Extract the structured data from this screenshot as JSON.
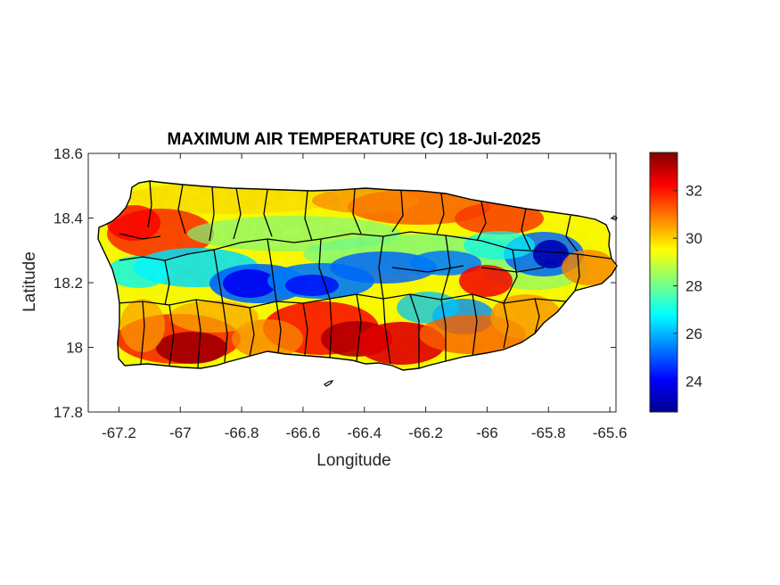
{
  "chart_data": {
    "type": "heatmap",
    "title": "MAXIMUM AIR TEMPERATURE (C) 18-Jul-2025",
    "xlabel": "Longitude",
    "ylabel": "Latitude",
    "xlim": [
      -67.3,
      -65.58
    ],
    "ylim": [
      17.8,
      18.6
    ],
    "xticks": [
      -67.2,
      -67,
      -66.8,
      -66.6,
      -66.4,
      -66.2,
      -66,
      -65.8,
      -65.6
    ],
    "xtick_labels": [
      "-67.2",
      "-67",
      "-66.8",
      "-66.6",
      "-66.4",
      "-66.2",
      "-66",
      "-65.8",
      "-65.6"
    ],
    "yticks": [
      17.8,
      18,
      18.2,
      18.4,
      18.6
    ],
    "ytick_labels": [
      "17.8",
      "18",
      "18.2",
      "18.4",
      "18.6"
    ],
    "colorbar": {
      "colormap": "jet",
      "range": [
        22.7,
        33.6
      ],
      "ticks": [
        24,
        26,
        28,
        30,
        32
      ],
      "tick_labels": [
        "24",
        "26",
        "28",
        "30",
        "32"
      ]
    },
    "region": "Puerto Rico",
    "spatial_pattern": {
      "description_only": false,
      "cool_band": {
        "lat_center": 18.21,
        "min_value": 23.0
      },
      "warm_areas": [
        {
          "lon": -66.95,
          "lat": 18.02,
          "value": 33.4
        },
        {
          "lon": -66.45,
          "lat": 18.0,
          "value": 33.0
        },
        {
          "lon": -66.3,
          "lat": 17.98,
          "value": 32.8
        },
        {
          "lon": -67.1,
          "lat": 18.36,
          "value": 32.5
        },
        {
          "lon": -66.05,
          "lat": 18.38,
          "value": 31.8
        },
        {
          "lon": -66.05,
          "lat": 18.22,
          "value": 32.2
        }
      ],
      "cold_areas": [
        {
          "lon": -66.8,
          "lat": 18.2,
          "value": 23.8
        },
        {
          "lon": -66.55,
          "lat": 18.2,
          "value": 24.3
        },
        {
          "lon": -65.8,
          "lat": 18.29,
          "value": 23.2
        },
        {
          "lon": -66.2,
          "lat": 18.06,
          "value": 25.5
        }
      ]
    }
  },
  "colors": {
    "axes": "#262626",
    "boundaries": "#000000",
    "background": "#ffffff"
  }
}
